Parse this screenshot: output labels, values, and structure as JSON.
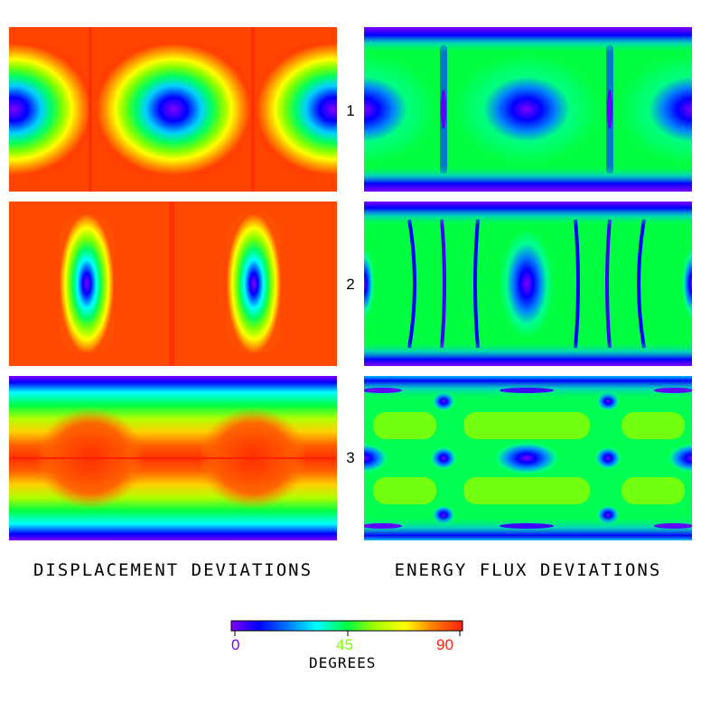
{
  "row_labels": [
    "1",
    "2",
    "3"
  ],
  "columns": {
    "left_title": "DISPLACEMENT DEVIATIONS",
    "right_title": "ENERGY FLUX DEVIATIONS"
  },
  "colorbar": {
    "min_label": "0",
    "mid_label": "45",
    "max_label": "90",
    "title": "DEGREES",
    "min_color": "#8000ff",
    "mid_color": "#7fff00",
    "max_color": "#ff2010"
  }
}
